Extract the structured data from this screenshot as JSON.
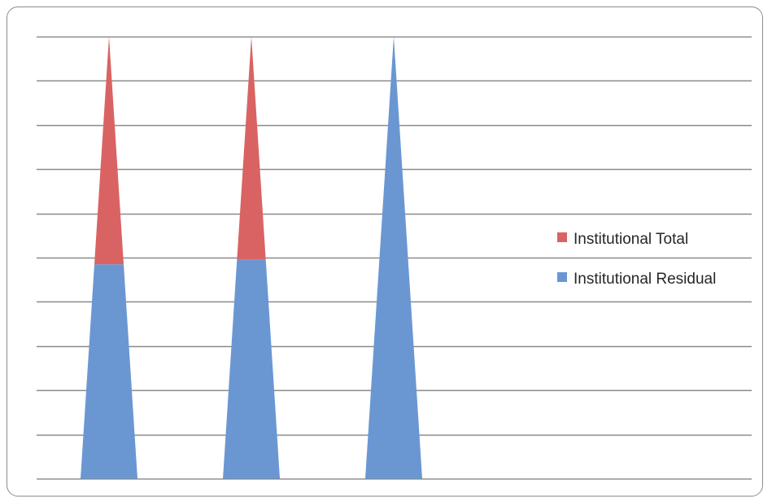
{
  "chart_data": {
    "type": "bar",
    "shape": "cone",
    "categories": [
      "",
      "",
      ""
    ],
    "series": [
      {
        "name": "Institutional Residual",
        "color": "#6a97d2",
        "values": [
          4.85,
          4.95,
          10
        ]
      },
      {
        "name": "Institutional Total",
        "color": "#d96363",
        "values": [
          5.15,
          5.05,
          0
        ]
      }
    ],
    "ylim": [
      0,
      10
    ],
    "ygrid_step": 1,
    "grid": true,
    "legend": "right",
    "stacked": true
  },
  "legend": {
    "items": [
      {
        "label": "Institutional Total",
        "color": "#d96363"
      },
      {
        "label": "Institutional Residual",
        "color": "#6a97d2"
      }
    ]
  }
}
